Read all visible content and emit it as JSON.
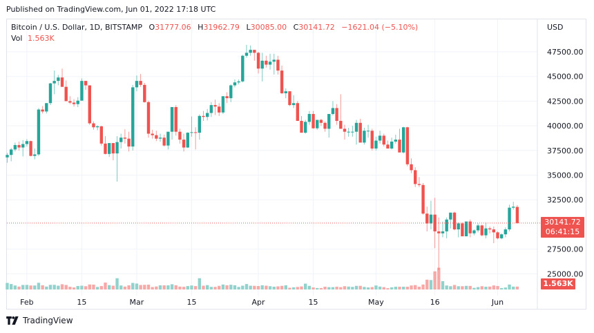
{
  "header": {
    "published": "Published on TradingView.com, Jun 01, 2022 17:18 UTC"
  },
  "legend": {
    "symbol": "Bitcoin / U.S. Dollar, 1D, BITSTAMP",
    "open_label": "O",
    "open": "31777.06",
    "high_label": "H",
    "high": "31962.79",
    "low_label": "L",
    "low": "30085.00",
    "close_label": "C",
    "close": "30141.72",
    "change": "−1621.04 (−5.10%)",
    "vol_label": "Vol",
    "vol": "1.563K"
  },
  "axis": {
    "currency": "USD",
    "last_price": "30141.72",
    "countdown": "06:41:15",
    "last_volume": "1.563K"
  },
  "footer": {
    "brand": "TradingView"
  },
  "colors": {
    "up": "#26a69a",
    "down": "#ef5350",
    "up_vol": "#92d2cc",
    "down_vol": "#f7a9a7",
    "grid": "#f0f3fa",
    "last_line": "#ef5350"
  },
  "chart_data": {
    "type": "candlestick",
    "title": "Bitcoin / U.S. Dollar, 1D, BITSTAMP",
    "ylabel": "USD",
    "ylim": [
      23500,
      48500
    ],
    "yticks": [
      25000,
      27500,
      32500,
      35000,
      37500,
      40000,
      42500,
      45000,
      47500
    ],
    "xticks": [
      {
        "label": "Feb",
        "index": 5
      },
      {
        "label": "15",
        "index": 19
      },
      {
        "label": "Mar",
        "index": 33
      },
      {
        "label": "15",
        "index": 47
      },
      {
        "label": "Apr",
        "index": 64
      },
      {
        "label": "15",
        "index": 78
      },
      {
        "label": "May",
        "index": 94
      },
      {
        "label": "16",
        "index": 109
      },
      {
        "label": "Jun",
        "index": 125
      }
    ],
    "grid": true,
    "last_price_line": 30141.72,
    "candles": [
      [
        36800,
        37250,
        36250,
        37050,
        0.9
      ],
      [
        37050,
        37750,
        36400,
        37600,
        0.75
      ],
      [
        37600,
        38300,
        37400,
        38050,
        0.55
      ],
      [
        38050,
        38400,
        37500,
        37800,
        0.4
      ],
      [
        37800,
        38550,
        36900,
        38150,
        0.62
      ],
      [
        38150,
        38650,
        37900,
        38450,
        0.63
      ],
      [
        38450,
        38500,
        36900,
        36950,
        0.55
      ],
      [
        36950,
        37700,
        36600,
        37100,
        0.55
      ],
      [
        37100,
        41800,
        36950,
        41650,
        0.92
      ],
      [
        41650,
        42000,
        41250,
        41450,
        0.58
      ],
      [
        41450,
        42300,
        41250,
        42300,
        0.4
      ],
      [
        42300,
        44350,
        42100,
        44300,
        0.64
      ],
      [
        44300,
        45600,
        43200,
        44550,
        0.64
      ],
      [
        44550,
        45150,
        44100,
        44900,
        0.52
      ],
      [
        44900,
        45800,
        43950,
        43950,
        0.72
      ],
      [
        43950,
        44600,
        42500,
        42500,
        0.62
      ],
      [
        42500,
        43000,
        42200,
        42350,
        0.37
      ],
      [
        42350,
        42700,
        41950,
        42200,
        0.28
      ],
      [
        42200,
        42900,
        41900,
        42550,
        0.48
      ],
      [
        42550,
        44800,
        42550,
        44550,
        0.52
      ],
      [
        44550,
        44550,
        43650,
        44100,
        0.45
      ],
      [
        44100,
        43850,
        40100,
        40250,
        0.69
      ],
      [
        40250,
        40450,
        39600,
        39850,
        0.67
      ],
      [
        39850,
        40050,
        39550,
        39950,
        0.35
      ],
      [
        39950,
        40000,
        38000,
        38200,
        0.47
      ],
      [
        38200,
        38950,
        37100,
        37150,
        0.95
      ],
      [
        37150,
        38200,
        36850,
        38250,
        0.6
      ],
      [
        38250,
        37900,
        36500,
        37200,
        0.52
      ],
      [
        37200,
        38950,
        34350,
        38350,
        1.55
      ],
      [
        38350,
        39200,
        37700,
        38800,
        0.55
      ],
      [
        38800,
        39650,
        38200,
        38700,
        0.4
      ],
      [
        38700,
        39400,
        37400,
        37900,
        0.57
      ],
      [
        37900,
        44150,
        37500,
        43900,
        0.9
      ],
      [
        43900,
        45100,
        43500,
        44550,
        0.82
      ],
      [
        44550,
        45250,
        43950,
        44150,
        0.62
      ],
      [
        44150,
        44350,
        42350,
        42400,
        0.64
      ],
      [
        42400,
        42550,
        38800,
        39200,
        0.66
      ],
      [
        39200,
        39600,
        38700,
        39050,
        0.34
      ],
      [
        39050,
        39500,
        38450,
        38700,
        0.41
      ],
      [
        38700,
        39200,
        38400,
        38800,
        0.57
      ],
      [
        38800,
        39100,
        37900,
        38000,
        0.57
      ],
      [
        38000,
        39400,
        37600,
        39400,
        0.57
      ],
      [
        39400,
        41900,
        38600,
        41900,
        0.72
      ],
      [
        41900,
        42100,
        39000,
        39400,
        0.58
      ],
      [
        39400,
        39700,
        38200,
        38600,
        0.4
      ],
      [
        38600,
        39200,
        37400,
        37800,
        0.37
      ],
      [
        37800,
        39350,
        37750,
        39300,
        0.47
      ],
      [
        39300,
        40950,
        38900,
        39350,
        0.55
      ],
      [
        39350,
        39850,
        37600,
        39300,
        0.47
      ],
      [
        39300,
        41150,
        38600,
        41000,
        1.55
      ],
      [
        41000,
        41500,
        40500,
        40900,
        0.52
      ],
      [
        40900,
        41700,
        40550,
        41300,
        0.6
      ],
      [
        41300,
        42400,
        40900,
        42100,
        0.36
      ],
      [
        42100,
        42650,
        41100,
        41950,
        0.36
      ],
      [
        41950,
        42300,
        41000,
        41350,
        0.5
      ],
      [
        41350,
        43000,
        41200,
        43000,
        0.68
      ],
      [
        43000,
        43400,
        42300,
        42800,
        0.58
      ],
      [
        42800,
        44200,
        42400,
        44100,
        0.65
      ],
      [
        44100,
        44700,
        43900,
        44400,
        0.58
      ],
      [
        44400,
        44700,
        44200,
        44500,
        0.35
      ],
      [
        44500,
        47200,
        44400,
        47100,
        0.52
      ],
      [
        47100,
        48200,
        46900,
        47400,
        0.75
      ],
      [
        47400,
        48150,
        47100,
        47700,
        0.52
      ],
      [
        47700,
        47600,
        46600,
        47400,
        0.5
      ],
      [
        47400,
        47500,
        45300,
        45800,
        0.48
      ],
      [
        45800,
        47400,
        44500,
        46600,
        0.58
      ],
      [
        46600,
        47100,
        45900,
        46200,
        0.52
      ],
      [
        46200,
        47300,
        45700,
        46500,
        0.45
      ],
      [
        46500,
        47300,
        45200,
        46700,
        0.38
      ],
      [
        46700,
        47100,
        45200,
        45600,
        0.43
      ],
      [
        45600,
        46100,
        43200,
        43300,
        0.5
      ],
      [
        43300,
        43800,
        42800,
        43500,
        0.57
      ],
      [
        43500,
        43500,
        42000,
        42100,
        0.24
      ],
      [
        42100,
        43100,
        41800,
        42300,
        0.3
      ],
      [
        42300,
        42500,
        40600,
        40500,
        0.35
      ],
      [
        40500,
        41000,
        39300,
        39300,
        0.42
      ],
      [
        39300,
        40600,
        39200,
        40400,
        0.8
      ],
      [
        40400,
        41500,
        40100,
        41200,
        0.5
      ],
      [
        41200,
        41500,
        39700,
        39750,
        0.28
      ],
      [
        39750,
        40600,
        39600,
        40600,
        0.2
      ],
      [
        40600,
        40700,
        40000,
        40300,
        0.2
      ],
      [
        40300,
        40450,
        39400,
        39700,
        0.38
      ],
      [
        39700,
        41100,
        38800,
        41200,
        0.32
      ],
      [
        41200,
        42500,
        41050,
        41800,
        0.32
      ],
      [
        41800,
        42200,
        40100,
        40500,
        0.38
      ],
      [
        40500,
        43200,
        40000,
        39700,
        0.32
      ],
      [
        39700,
        40100,
        38600,
        39400,
        0.45
      ],
      [
        39400,
        39800,
        38900,
        39400,
        0.4
      ],
      [
        39400,
        40000,
        38900,
        39400,
        0.36
      ],
      [
        39400,
        40600,
        38100,
        40300,
        0.5
      ],
      [
        40300,
        40700,
        38400,
        38300,
        0.5
      ],
      [
        38300,
        39800,
        38100,
        39500,
        0.35
      ],
      [
        39500,
        40100,
        38800,
        39500,
        0.28
      ],
      [
        39500,
        39700,
        37500,
        37700,
        0.33
      ],
      [
        37700,
        38900,
        37500,
        38500,
        0.55
      ],
      [
        38500,
        39500,
        38200,
        39000,
        0.4
      ],
      [
        39000,
        39200,
        37900,
        38100,
        0.32
      ],
      [
        38100,
        38500,
        37700,
        37700,
        0.18
      ],
      [
        37700,
        38800,
        37600,
        38400,
        0.3
      ],
      [
        38400,
        39100,
        38200,
        38600,
        0.38
      ],
      [
        38600,
        39700,
        38400,
        37300,
        0.38
      ],
      [
        37300,
        39900,
        37200,
        39850,
        0.38
      ],
      [
        39850,
        39900,
        35900,
        36100,
        0.38
      ],
      [
        36100,
        36700,
        35200,
        35500,
        0.55
      ],
      [
        35500,
        35800,
        33800,
        34100,
        0.6
      ],
      [
        34100,
        34800,
        33800,
        34000,
        0.38
      ],
      [
        34000,
        34200,
        31000,
        31100,
        0.68
      ],
      [
        31100,
        31800,
        29300,
        30100,
        1.35
      ],
      [
        30100,
        32400,
        29500,
        31000,
        1.3
      ],
      [
        31000,
        32700,
        27600,
        29300,
        2.5
      ],
      [
        29300,
        30700,
        25400,
        29100,
        3.0
      ],
      [
        29100,
        30300,
        28700,
        29300,
        1.15
      ],
      [
        29300,
        30700,
        28600,
        30500,
        0.55
      ],
      [
        30500,
        31200,
        29600,
        31200,
        0.45
      ],
      [
        31200,
        31300,
        29400,
        29500,
        0.62
      ],
      [
        29500,
        30200,
        28700,
        30100,
        0.45
      ],
      [
        30100,
        30200,
        28800,
        28800,
        0.45
      ],
      [
        28800,
        30300,
        28800,
        30300,
        0.5
      ],
      [
        30300,
        30500,
        28700,
        29100,
        0.49
      ],
      [
        29100,
        29500,
        28900,
        29400,
        0.22
      ],
      [
        29400,
        30100,
        29200,
        29900,
        0.33
      ],
      [
        29900,
        30000,
        28800,
        28900,
        0.45
      ],
      [
        28900,
        30200,
        28600,
        29600,
        0.38
      ],
      [
        29600,
        29800,
        29100,
        29500,
        0.4
      ],
      [
        29500,
        29800,
        28100,
        29200,
        0.55
      ],
      [
        29200,
        29300,
        28500,
        28600,
        0.48
      ],
      [
        28600,
        29100,
        28500,
        29000,
        0.2
      ],
      [
        29000,
        29700,
        28700,
        29500,
        0.27
      ],
      [
        29500,
        32000,
        29300,
        31700,
        0.68
      ],
      [
        31700,
        32300,
        31500,
        31800,
        0.4
      ],
      [
        31777.06,
        31962.79,
        30085.0,
        30141.72,
        0.4
      ]
    ]
  }
}
